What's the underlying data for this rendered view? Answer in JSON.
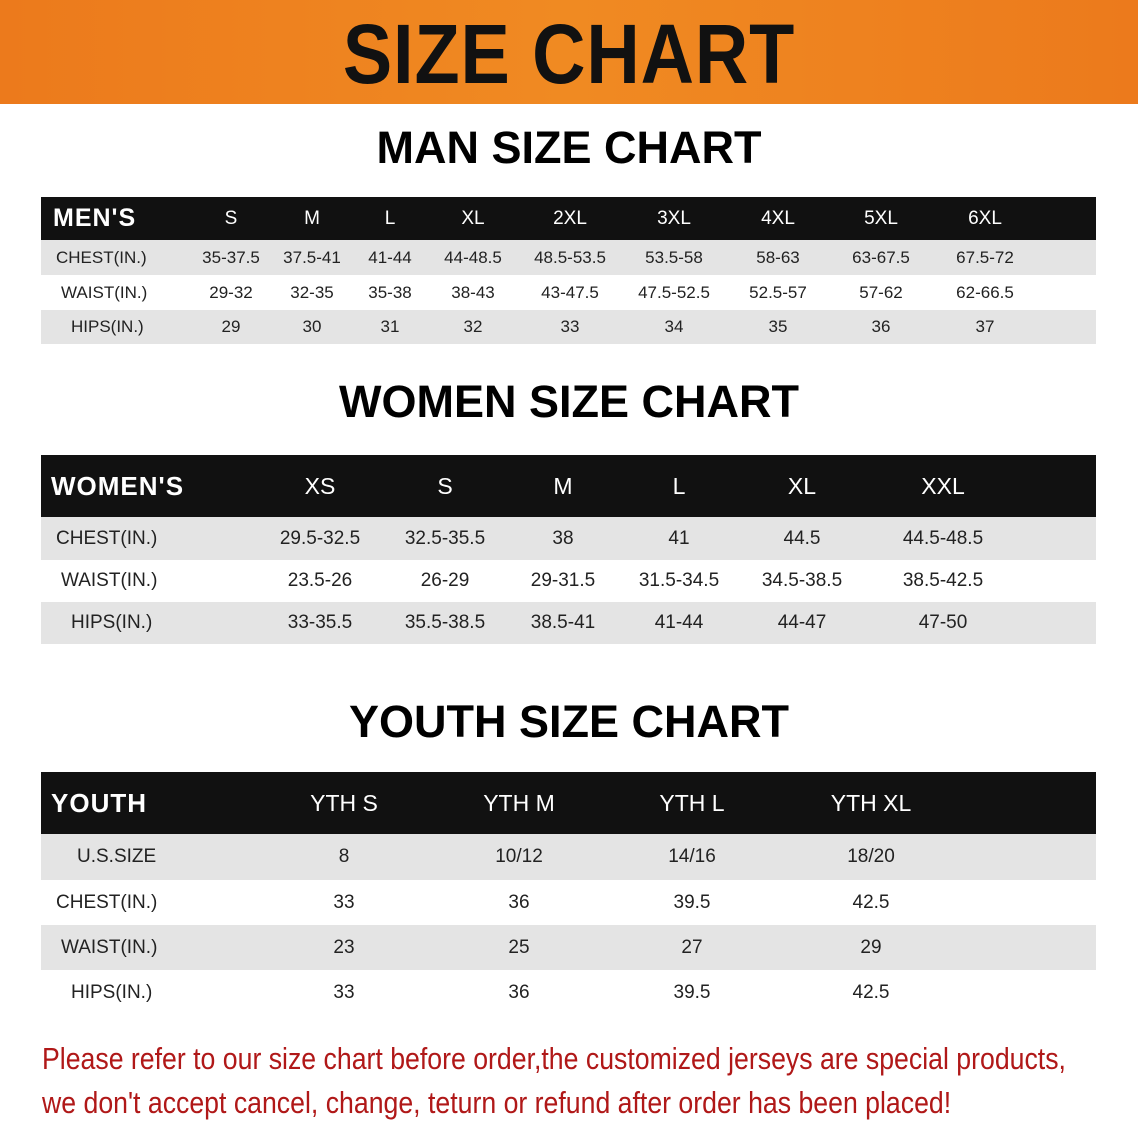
{
  "banner": {
    "title": "SIZE CHART",
    "color": "#ef7f1a"
  },
  "men": {
    "title": "MAN SIZE CHART",
    "header": [
      "MEN'S",
      "S",
      "M",
      "L",
      "XL",
      "2XL",
      "3XL",
      "4XL",
      "5XL",
      "6XL"
    ],
    "rows": [
      [
        "CHEST(IN.)",
        "35-37.5",
        "37.5-41",
        "41-44",
        "44-48.5",
        "48.5-53.5",
        "53.5-58",
        "58-63",
        "63-67.5",
        "67.5-72"
      ],
      [
        "WAIST(IN.)",
        "29-32",
        "32-35",
        "35-38",
        "38-43",
        "43-47.5",
        "47.5-52.5",
        "52.5-57",
        "57-62",
        "62-66.5"
      ],
      [
        "HIPS(IN.)",
        "29",
        "30",
        "31",
        "32",
        "33",
        "34",
        "35",
        "36",
        "37"
      ]
    ]
  },
  "women": {
    "title": "WOMEN SIZE CHART",
    "header": [
      "WOMEN'S",
      "XS",
      "S",
      "M",
      "L",
      "XL",
      "XXL"
    ],
    "rows": [
      [
        "CHEST(IN.)",
        "29.5-32.5",
        "32.5-35.5",
        "38",
        "41",
        "44.5",
        "44.5-48.5"
      ],
      [
        "WAIST(IN.)",
        "23.5-26",
        "26-29",
        "29-31.5",
        "31.5-34.5",
        "34.5-38.5",
        "38.5-42.5"
      ],
      [
        "HIPS(IN.)",
        "33-35.5",
        "35.5-38.5",
        "38.5-41",
        "41-44",
        "44-47",
        "47-50"
      ]
    ]
  },
  "youth": {
    "title": "YOUTH SIZE CHART",
    "header": [
      "YOUTH",
      "YTH S",
      "YTH M",
      "YTH L",
      "YTH XL"
    ],
    "rows": [
      [
        "U.S.SIZE",
        "8",
        "10/12",
        "14/16",
        "18/20"
      ],
      [
        "CHEST(IN.)",
        "33",
        "36",
        "39.5",
        "42.5"
      ],
      [
        "WAIST(IN.)",
        "23",
        "25",
        "27",
        "29"
      ],
      [
        "HIPS(IN.)",
        "33",
        "36",
        "39.5",
        "42.5"
      ]
    ]
  },
  "note": {
    "line1": "Please refer to our size chart before order,the customized jerseys are special products,",
    "line2": "we don't accept cancel, change, teturn or refund after order has been placed!",
    "color": "#b01818"
  }
}
